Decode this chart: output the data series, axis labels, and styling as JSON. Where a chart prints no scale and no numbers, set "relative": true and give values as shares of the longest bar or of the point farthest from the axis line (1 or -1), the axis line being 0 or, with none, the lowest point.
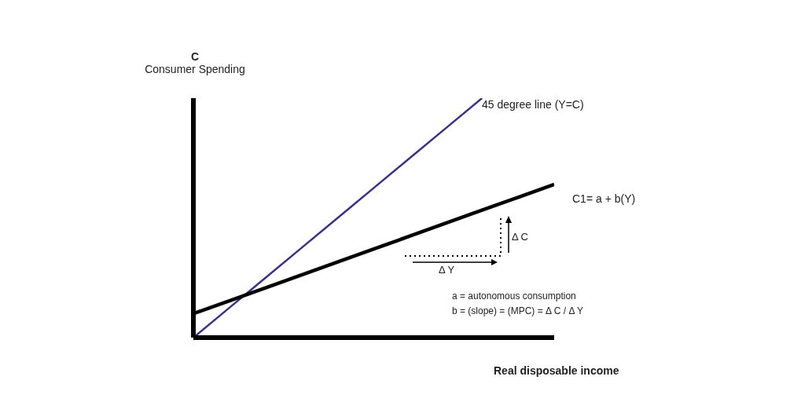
{
  "chart_data": {
    "type": "line",
    "relative": true,
    "xlabel": "Real disposable income",
    "ylabel": "Consumer Spending",
    "categories": [
      null,
      null,
      null,
      null,
      null,
      null,
      null,
      null,
      null,
      null,
      null
    ],
    "series": [
      {
        "name": "45 degree line (Y=C)",
        "color": "#3d2e8c",
        "values": [
          0,
          0.125,
          0.25,
          0.375,
          0.5,
          0.625,
          0.75,
          0.875,
          1,
          null,
          null
        ]
      },
      {
        "name": "C1= a + b(Y)",
        "color": "#000000",
        "values": [
          0.1,
          0.154,
          0.208,
          0.262,
          0.316,
          0.37,
          0.424,
          0.478,
          0.532,
          0.586,
          0.64
        ]
      }
    ],
    "annotations": [
      "C",
      "Δ C",
      "Δ Y",
      "a = autonomous consumption",
      "b = (slope) = (MPC)  = Δ C / Δ Y"
    ],
    "grid": false,
    "legend": false,
    "marker": "none",
    "line_style": "solid"
  }
}
